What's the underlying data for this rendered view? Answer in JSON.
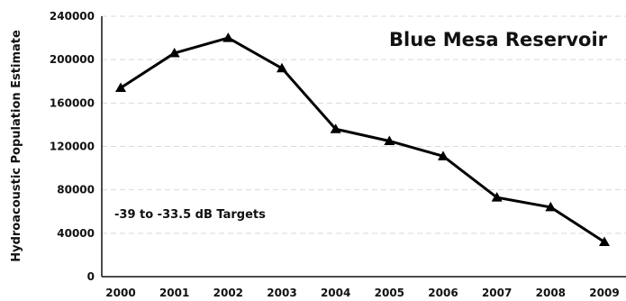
{
  "chart_data": {
    "type": "line",
    "title": "Blue Mesa Reservoir",
    "xlabel": "",
    "ylabel": "Hydroacoustic Population Estimate",
    "annotation": "-39 to -33.5 dB Targets",
    "categories": [
      "2000",
      "2001",
      "2002",
      "2003",
      "2004",
      "2005",
      "2006",
      "2007",
      "2008",
      "2009"
    ],
    "series": [
      {
        "values": [
          174000,
          206000,
          220000,
          192000,
          136000,
          125000,
          111000,
          73000,
          64000,
          32000
        ],
        "color": "#000000",
        "marker": "triangle"
      }
    ],
    "ylim": [
      0,
      240000
    ],
    "yticks": [
      "0",
      "40000",
      "80000",
      "120000",
      "160000",
      "200000",
      "240000"
    ],
    "grid": true,
    "legend": "none"
  }
}
